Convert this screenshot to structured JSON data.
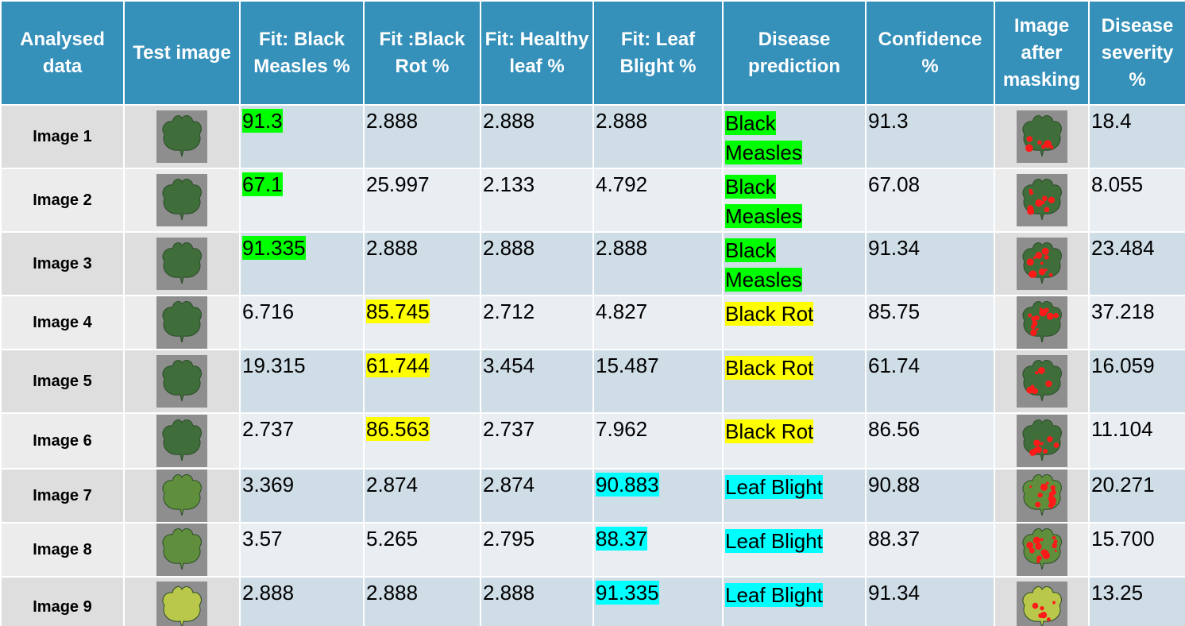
{
  "header": [
    "Analysed data",
    "Test image",
    "Fit: Black Measles %",
    "Fit :Black Rot %",
    "Fit: Healthy leaf %",
    "Fit: Leaf Blight %",
    "Disease prediction",
    "Confidence %",
    "Image after masking",
    "Disease severity %"
  ],
  "rows": [
    {
      "label": "Image 1",
      "values": [
        "91.3",
        "2.888",
        "2.888",
        "2.888",
        "Black Measles",
        "91.3",
        "18.4"
      ],
      "color": "#00ff00"
    },
    {
      "label": "Image 2",
      "values": [
        "67.1",
        "25.997",
        "2.133",
        "4.792",
        "Black Measles",
        "67.08",
        "8.055"
      ],
      "color": "#00ff00"
    },
    {
      "label": "Image 3",
      "values": [
        "91.335",
        "2.888",
        "2.888",
        "2.888",
        "Black Measles",
        "91.34",
        "23.484"
      ],
      "color": "#00ff00"
    },
    {
      "label": "Image 4",
      "values": [
        "6.716",
        "85.745",
        "2.712",
        "4.827",
        "Black Rot",
        "85.75",
        "37.218"
      ],
      "color": "#ffff00"
    },
    {
      "label": "Image 5",
      "values": [
        "19.315",
        "61.744",
        "3.454",
        "15.487",
        "Black Rot",
        "61.74",
        "16.059"
      ],
      "color": "#ffff00"
    },
    {
      "label": "Image 6",
      "values": [
        "2.737",
        "86.563",
        "2.737",
        "7.962",
        "Black Rot",
        "86.56",
        "11.104"
      ],
      "color": "#ffff00"
    },
    {
      "label": "Image 7",
      "values": [
        "3.369",
        "2.874",
        "2.874",
        "90.883",
        "Leaf Blight",
        "90.88",
        "20.271"
      ],
      "color": "#00ffff"
    },
    {
      "label": "Image 8",
      "values": [
        "3.57",
        "5.265",
        "2.795",
        "88.37",
        "Leaf Blight",
        "88.37",
        "15.700"
      ],
      "color": "#00ffff"
    },
    {
      "label": "Image 9",
      "values": [
        "2.888",
        "2.888",
        "2.888",
        "91.335",
        "Leaf Blight",
        "91.34",
        "13.25"
      ],
      "color": "#00ffff"
    }
  ]
}
